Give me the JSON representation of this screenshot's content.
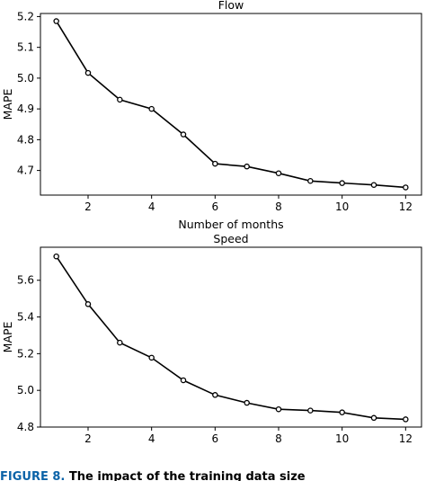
{
  "chart_data": [
    {
      "type": "line",
      "title": "Flow",
      "xlabel": "Number of months",
      "ylabel": "MAPE",
      "x": [
        1,
        2,
        3,
        4,
        5,
        6,
        7,
        8,
        9,
        10,
        11,
        12
      ],
      "series": [
        {
          "values": [
            5.185,
            5.017,
            4.93,
            4.9,
            4.817,
            4.722,
            4.713,
            4.691,
            4.666,
            4.659,
            4.653,
            4.645
          ]
        }
      ],
      "xticks": [
        2,
        4,
        6,
        8,
        10,
        12
      ],
      "yticks": [
        4.7,
        4.8,
        4.9,
        5.0,
        5.1,
        5.2
      ],
      "ytick_labels": [
        "4.7",
        "4.8",
        "4.9",
        "5.0",
        "5.1",
        "5.2"
      ],
      "xlim": [
        0.5,
        12.5
      ],
      "ylim": [
        4.62,
        5.21
      ],
      "grid": false,
      "color": "#000000"
    },
    {
      "type": "line",
      "title": "Speed",
      "xlabel": "",
      "ylabel": "MAPE",
      "x": [
        1,
        2,
        3,
        4,
        5,
        6,
        7,
        8,
        9,
        10,
        11,
        12
      ],
      "series": [
        {
          "values": [
            5.73,
            5.47,
            5.26,
            5.178,
            5.055,
            4.975,
            4.932,
            4.897,
            4.89,
            4.88,
            4.85,
            4.842
          ]
        }
      ],
      "xticks": [
        2,
        4,
        6,
        8,
        10,
        12
      ],
      "yticks": [
        4.8,
        5.0,
        5.2,
        5.4,
        5.6
      ],
      "ytick_labels": [
        "4.8",
        "5.0",
        "5.2",
        "5.4",
        "5.6"
      ],
      "xlim": [
        0.5,
        12.5
      ],
      "ylim": [
        4.8,
        5.78
      ],
      "grid": false,
      "color": "#000000"
    }
  ],
  "caption": {
    "figure_label": "FIGURE 8.",
    "text": "The impact of the training data size"
  }
}
